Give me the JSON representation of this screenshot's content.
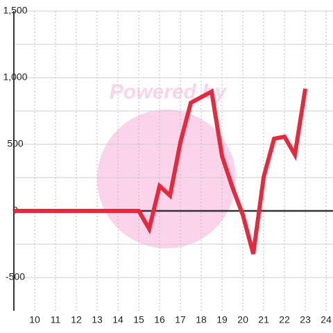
{
  "chart_data": {
    "type": "line",
    "watermark": "Powered by",
    "x": [
      9,
      9.5,
      10,
      10.5,
      11,
      11.5,
      12,
      12.5,
      13,
      13.5,
      14,
      14.5,
      15,
      15.5,
      16,
      16.5,
      17,
      17.5,
      18,
      18.5,
      19,
      19.5,
      20,
      20.5,
      21,
      21.5,
      22,
      22.5,
      23
    ],
    "series": [
      {
        "color": "#e8283c",
        "values": [
          0,
          0,
          0,
          0,
          0,
          0,
          0,
          0,
          0,
          0,
          0,
          0,
          0,
          -135,
          187,
          115,
          516,
          812,
          854,
          896,
          411,
          177,
          -31,
          -323,
          255,
          542,
          557,
          422,
          917
        ]
      }
    ],
    "xlim": [
      9,
      24.33
    ],
    "xticks": [
      10,
      11,
      12,
      13,
      14,
      15,
      16,
      17,
      18,
      19,
      20,
      21,
      22,
      23,
      24
    ],
    "ylim": [
      -750,
      1500
    ],
    "yticks": [
      {
        "value": -500,
        "label": "-500"
      },
      0,
      500,
      {
        "value": 1000,
        "label": "1,000"
      },
      {
        "value": 1500,
        "label": "1,500"
      }
    ],
    "y_minor_ticks": [
      -250,
      250,
      750,
      1250
    ],
    "grid": true
  }
}
